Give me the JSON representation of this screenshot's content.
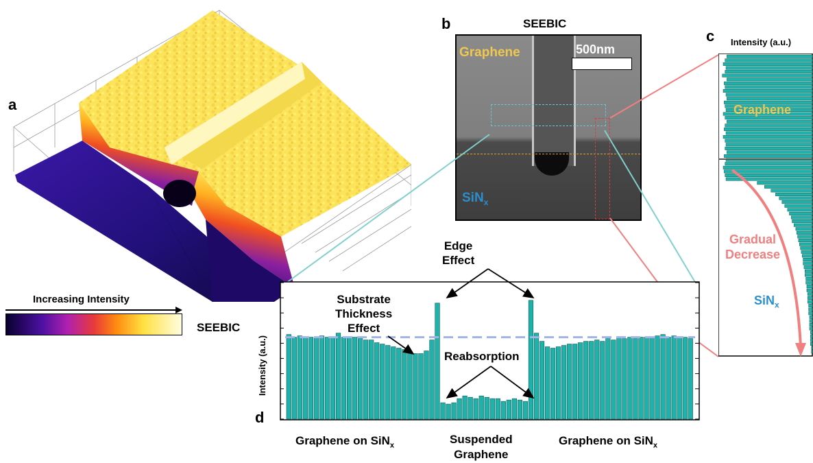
{
  "panels": {
    "a": {
      "label": "a",
      "colorbar_title": "Increasing Intensity",
      "caption": "SEEBIC"
    },
    "b": {
      "label": "b",
      "title": "SEEBIC",
      "scale_bar": "500nm",
      "graphene_label": "Graphene",
      "sinx_label_main": "SiN",
      "sinx_label_sub": "x"
    },
    "c": {
      "label": "c",
      "axis_title": "Intensity (a.u.)",
      "graphene_label": "Graphene",
      "gradual_label_line1": "Gradual",
      "gradual_label_line2": "Decrease",
      "sinx_label_main": "SiN",
      "sinx_label_sub": "x"
    },
    "d": {
      "label": "d",
      "ylabel": "Intensity (a.u.)",
      "edge_line1": "Edge",
      "edge_line2": "Effect",
      "substrate_line1": "Substrate",
      "substrate_line2": "Thickness",
      "substrate_line3": "Effect",
      "reabsorption": "Reabsorption",
      "x_left_main": "Graphene on SiN",
      "x_left_sub": "x",
      "x_mid_line1": "Suspended",
      "x_mid_line2": "Graphene",
      "x_right_main": "Graphene on SiN",
      "x_right_sub": "x"
    }
  },
  "colors": {
    "bar": "#20b2aa",
    "graphene_text": "#f0c850",
    "sinx_text": "#2a8fd0",
    "gradual_text": "#f08080",
    "guide_line": "#a0b4e8"
  },
  "chart_data": [
    {
      "type": "bar",
      "panel": "d",
      "title": "",
      "xlabel": "",
      "ylabel": "Intensity (a.u.)",
      "ylim": [
        0,
        1
      ],
      "values": [
        0.62,
        0.6,
        0.61,
        0.6,
        0.6,
        0.6,
        0.61,
        0.6,
        0.6,
        0.63,
        0.6,
        0.6,
        0.6,
        0.59,
        0.58,
        0.58,
        0.56,
        0.55,
        0.54,
        0.53,
        0.52,
        0.51,
        0.49,
        0.48,
        0.48,
        0.5,
        0.58,
        0.85,
        0.12,
        0.11,
        0.12,
        0.15,
        0.17,
        0.16,
        0.15,
        0.17,
        0.16,
        0.15,
        0.15,
        0.13,
        0.14,
        0.15,
        0.14,
        0.13,
        0.87,
        0.63,
        0.57,
        0.53,
        0.52,
        0.53,
        0.54,
        0.55,
        0.55,
        0.56,
        0.57,
        0.57,
        0.58,
        0.57,
        0.59,
        0.58,
        0.6,
        0.59,
        0.6,
        0.59,
        0.6,
        0.6,
        0.6,
        0.61,
        0.62,
        0.6,
        0.61,
        0.6,
        0.6,
        0.59
      ],
      "reference_level": 0.6
    },
    {
      "type": "bar",
      "panel": "c",
      "orientation": "horizontal",
      "title": "",
      "xlabel": "Intensity (a.u.)",
      "values": [
        0.93,
        0.95,
        0.97,
        0.94,
        0.95,
        0.98,
        0.93,
        0.96,
        0.95,
        0.97,
        0.94,
        0.93,
        0.96,
        0.95,
        0.94,
        0.97,
        0.95,
        0.93,
        0.95,
        0.96,
        0.94,
        0.97,
        0.95,
        0.94,
        0.95,
        0.93,
        0.96,
        0.94,
        0.95,
        0.97,
        0.96,
        0.95,
        0.94,
        0.6,
        0.52,
        0.45,
        0.4,
        0.36,
        0.33,
        0.3,
        0.27,
        0.25,
        0.23,
        0.22,
        0.2,
        0.18,
        0.17,
        0.16,
        0.15,
        0.14,
        0.13,
        0.12,
        0.11,
        0.1,
        0.1,
        0.09,
        0.08,
        0.08,
        0.07,
        0.07,
        0.06,
        0.06,
        0.05,
        0.05,
        0.05,
        0.04,
        0.04,
        0.04,
        0.03,
        0.03,
        0.03,
        0.03,
        0.02,
        0.02,
        0.02,
        0.02,
        0.01,
        0.01
      ]
    }
  ]
}
